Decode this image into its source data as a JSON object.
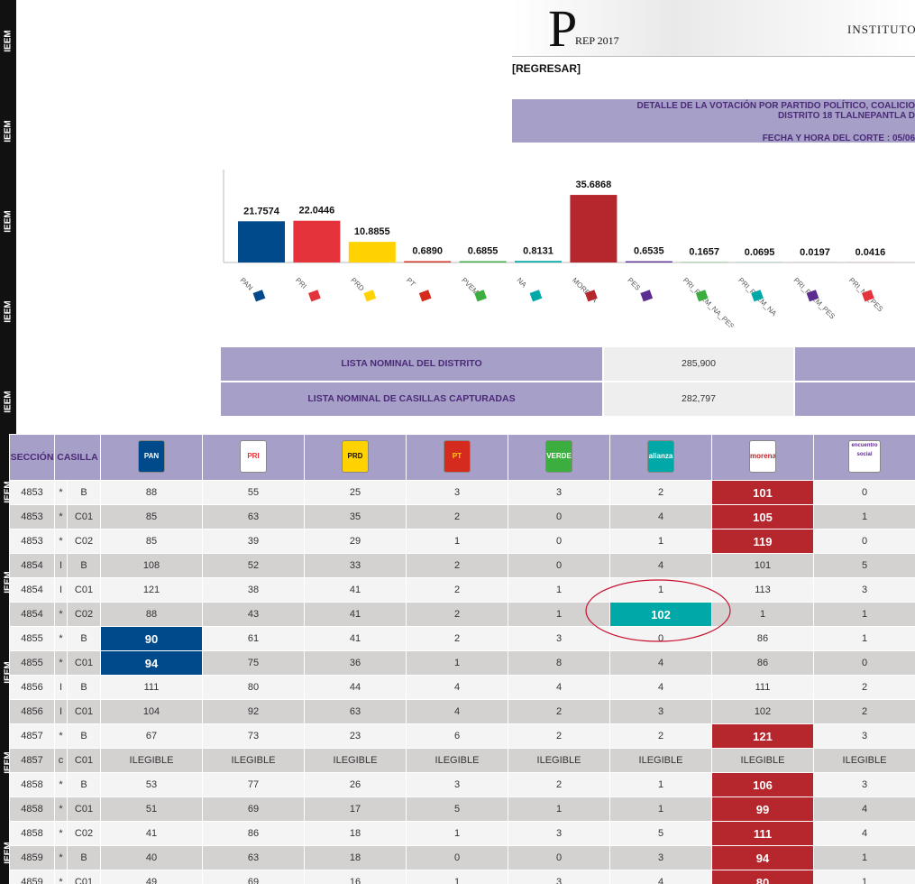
{
  "sidebar_label": "IEEM",
  "header": {
    "logo_letter": "P",
    "logo_text": "REP 2017",
    "institute": "INSTITUTO"
  },
  "back_link": "[REGRESAR]",
  "banner": {
    "lines": [
      "DETALLE DE LA VOTACIÓN POR PARTIDO POLÍTICO, COALICIO",
      "DISTRITO 18 TLALNEPANTLA D",
      "FECHA Y HORA DEL CORTE : 05/06"
    ]
  },
  "chart_data": {
    "type": "bar",
    "categories": [
      "PAN",
      "PRI",
      "PRD",
      "PT",
      "PVEM",
      "NA",
      "MORENA",
      "PES",
      "PRI_PVEM_NA_PES",
      "PRI_PVEM_NA",
      "PRI_PVEM_PES",
      "PRI_NA_PES"
    ],
    "values": [
      21.7574,
      22.0446,
      10.8855,
      0.689,
      0.6855,
      0.8131,
      35.6868,
      0.6535,
      0.1657,
      0.0695,
      0.0197,
      0.0416
    ],
    "value_labels": [
      "21.7574",
      "22.0446",
      "10.8855",
      "0.6890",
      "0.6855",
      "0.8131",
      "35.6868",
      "0.6535",
      "0.1657",
      "0.0695",
      "0.0197",
      "0.0416"
    ],
    "colors": [
      "#004a8c",
      "#e4333b",
      "#ffd200",
      "#d52b1e",
      "#3cae3f",
      "#00a8a8",
      "#b5272d",
      "#5c2d91",
      "#3cae3f",
      "#00a8a8",
      "#5c2d91",
      "#e4333b"
    ],
    "ylim": [
      0,
      40
    ]
  },
  "nominal": {
    "rows": [
      {
        "label": "LISTA NOMINAL DEL DISTRITO",
        "value": "285,900"
      },
      {
        "label": "LISTA NOMINAL DE CASILLAS CAPTURADAS",
        "value": "282,797"
      }
    ]
  },
  "table": {
    "columns": [
      "SECCIÓN",
      "CASILLA",
      "PAN",
      "PRI",
      "PRD",
      "PT",
      "VERDE",
      "alianza",
      "morena",
      "encuentro social"
    ],
    "party_colors": [
      "#004a8c",
      "#e4333b",
      "#ffd200",
      "#d52b1e",
      "#3cae3f",
      "#00a8a8",
      "#b5272d",
      "#5c2d91"
    ],
    "rows": [
      [
        4853,
        "*",
        "B",
        88,
        55,
        25,
        3,
        3,
        2,
        101,
        0
      ],
      [
        4853,
        "*",
        "C01",
        85,
        63,
        35,
        2,
        0,
        4,
        105,
        1
      ],
      [
        4853,
        "*",
        "C02",
        85,
        39,
        29,
        1,
        0,
        1,
        119,
        0
      ],
      [
        4854,
        "I",
        "B",
        108,
        52,
        33,
        2,
        0,
        4,
        101,
        5
      ],
      [
        4854,
        "I",
        "C01",
        121,
        38,
        41,
        2,
        1,
        1,
        113,
        3
      ],
      [
        4854,
        "*",
        "C02",
        88,
        43,
        41,
        2,
        1,
        102,
        1,
        1
      ],
      [
        4855,
        "*",
        "B",
        90,
        61,
        41,
        2,
        3,
        0,
        86,
        1
      ],
      [
        4855,
        "*",
        "C01",
        94,
        75,
        36,
        1,
        8,
        4,
        86,
        0
      ],
      [
        4856,
        "I",
        "B",
        111,
        80,
        44,
        4,
        4,
        4,
        111,
        2
      ],
      [
        4856,
        "I",
        "C01",
        104,
        92,
        63,
        4,
        2,
        3,
        102,
        2
      ],
      [
        4857,
        "*",
        "B",
        67,
        73,
        23,
        6,
        2,
        2,
        121,
        3
      ],
      [
        4857,
        "c",
        "C01",
        "ILEGIBLE",
        "ILEGIBLE",
        "ILEGIBLE",
        "ILEGIBLE",
        "ILEGIBLE",
        "ILEGIBLE",
        "ILEGIBLE",
        "ILEGIBLE"
      ],
      [
        4858,
        "*",
        "B",
        53,
        77,
        26,
        3,
        2,
        1,
        106,
        3
      ],
      [
        4858,
        "*",
        "C01",
        51,
        69,
        17,
        5,
        1,
        1,
        99,
        4
      ],
      [
        4858,
        "*",
        "C02",
        41,
        86,
        18,
        1,
        3,
        5,
        111,
        4
      ],
      [
        4859,
        "*",
        "B",
        40,
        63,
        18,
        0,
        0,
        3,
        94,
        1
      ],
      [
        4859,
        "*",
        "C01",
        49,
        69,
        16,
        1,
        3,
        4,
        80,
        1
      ]
    ],
    "highlight": [
      9,
      9,
      9,
      null,
      null,
      8,
      3,
      3,
      null,
      null,
      9,
      null,
      9,
      9,
      9,
      9,
      9
    ]
  }
}
